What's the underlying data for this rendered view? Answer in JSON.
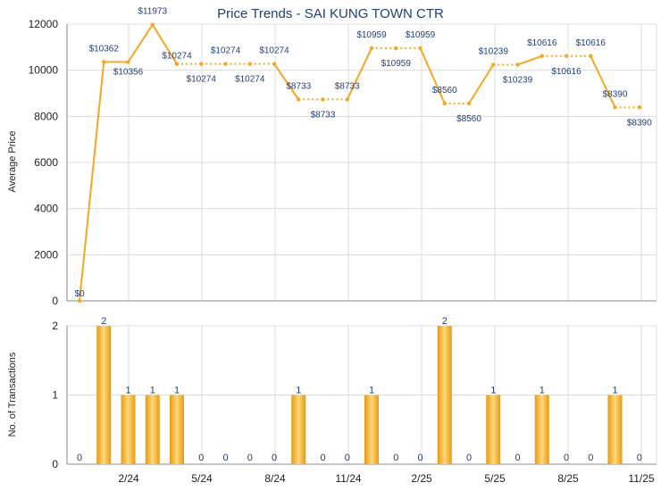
{
  "chart_data": [
    {
      "type": "line",
      "title": "Price Trends - SAI KUNG TOWN CTR",
      "ylabel": "Average Price",
      "ylim": [
        0,
        12000
      ],
      "yticks": [
        0,
        2000,
        4000,
        6000,
        8000,
        10000,
        12000
      ],
      "x_tick_labels": [
        "2/24",
        "5/24",
        "8/24",
        "11/24",
        "2/25",
        "5/25",
        "8/25",
        "11/25"
      ],
      "points": [
        {
          "value": 0,
          "label": "$0"
        },
        {
          "value": 10362,
          "label": "$10362"
        },
        {
          "value": 10356,
          "label": "$10356"
        },
        {
          "value": 11973,
          "label": "$11973"
        },
        {
          "value": 10274,
          "label": "$10274"
        },
        {
          "value": 10274,
          "label": "$10274"
        },
        {
          "value": 10274,
          "label": "$10274"
        },
        {
          "value": 10274,
          "label": "$10274"
        },
        {
          "value": 10274,
          "label": "$10274"
        },
        {
          "value": 8733,
          "label": "$8733"
        },
        {
          "value": 8733,
          "label": "$8733"
        },
        {
          "value": 8733,
          "label": "$8733"
        },
        {
          "value": 10959,
          "label": "$10959"
        },
        {
          "value": 10959,
          "label": "$10959"
        },
        {
          "value": 10959,
          "label": "$10959"
        },
        {
          "value": 8560,
          "label": "$8560"
        },
        {
          "value": 8560,
          "label": "$8560"
        },
        {
          "value": 10239,
          "label": "$10239"
        },
        {
          "value": 10239,
          "label": "$10239"
        },
        {
          "value": 10616,
          "label": "$10616"
        },
        {
          "value": 10616,
          "label": "$10616"
        },
        {
          "value": 10616,
          "label": "$10616"
        },
        {
          "value": 8390,
          "label": "$8390"
        },
        {
          "value": 8390,
          "label": "$8390"
        }
      ],
      "line_style": [
        "solid",
        "solid",
        "solid",
        "solid",
        "dotted",
        "dotted",
        "dotted",
        "dotted",
        "solid",
        "dotted",
        "dotted",
        "solid",
        "dotted",
        "dotted",
        "solid",
        "dotted",
        "solid",
        "dotted",
        "solid",
        "dotted",
        "dotted",
        "solid",
        "dotted"
      ],
      "color": "#f5a623",
      "grid": true
    },
    {
      "type": "bar",
      "ylabel": "No. of Transactions",
      "ylim": [
        0,
        2
      ],
      "yticks": [
        0,
        1,
        2
      ],
      "x_tick_labels": [
        "2/24",
        "5/24",
        "8/24",
        "11/24",
        "2/25",
        "5/25",
        "8/25",
        "11/25"
      ],
      "values": [
        0,
        2,
        1,
        1,
        1,
        0,
        0,
        0,
        0,
        1,
        0,
        0,
        1,
        0,
        0,
        2,
        0,
        1,
        0,
        1,
        0,
        0,
        1,
        0
      ],
      "labels": [
        "0",
        "2",
        "1",
        "1",
        "1",
        "0",
        "0",
        "0",
        "0",
        "1",
        "0",
        "0",
        "1",
        "0",
        "0",
        "2",
        "0",
        "1",
        "0",
        "1",
        "0",
        "0",
        "1",
        "0"
      ],
      "color": "#f5a623",
      "grid": true
    }
  ]
}
